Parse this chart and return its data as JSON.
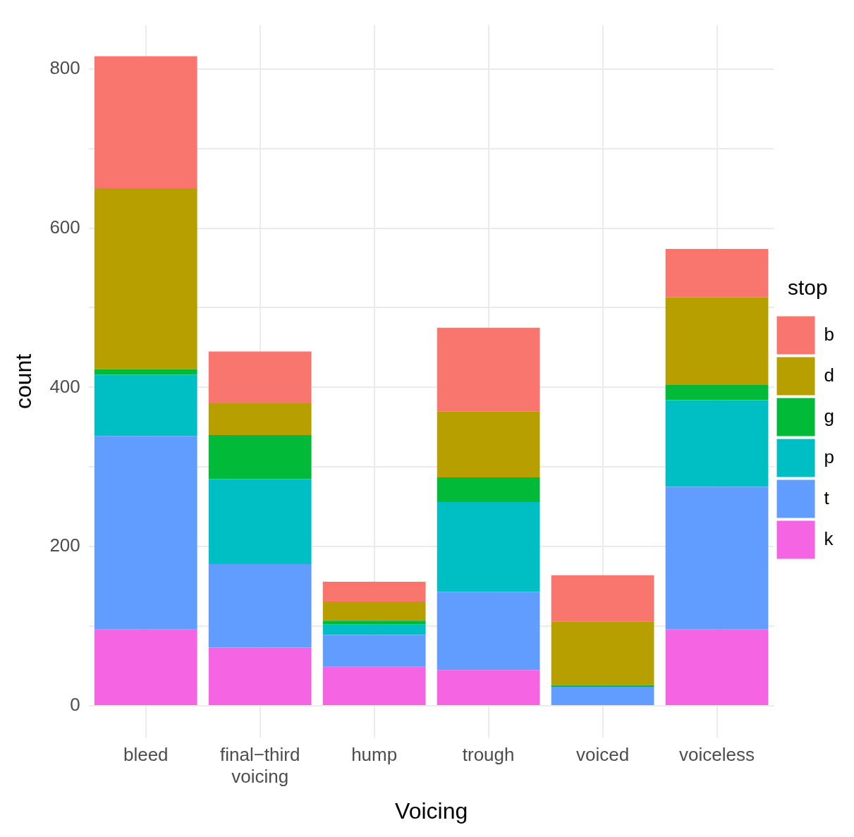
{
  "chart_data": {
    "type": "bar",
    "stacked": true,
    "xlabel": "Voicing",
    "ylabel": "count",
    "legend_title": "stop",
    "legend": "right",
    "grid": true,
    "categories": [
      "bleed",
      "final−third voicing",
      "hump",
      "trough",
      "voiced",
      "voiceless"
    ],
    "series": [
      {
        "name": "k",
        "color": "#f564e3",
        "values": [
          96,
          73,
          49,
          45,
          0,
          96
        ]
      },
      {
        "name": "t",
        "color": "#619cff",
        "values": [
          243,
          105,
          40,
          98,
          24,
          179
        ]
      },
      {
        "name": "p",
        "color": "#00bfc4",
        "values": [
          77,
          107,
          13,
          113,
          0,
          109
        ]
      },
      {
        "name": "g",
        "color": "#00ba38",
        "values": [
          7,
          55,
          5,
          31,
          2,
          19
        ]
      },
      {
        "name": "d",
        "color": "#b79f00",
        "values": [
          227,
          40,
          24,
          83,
          80,
          110
        ]
      },
      {
        "name": "b",
        "color": "#f8766d",
        "values": [
          166,
          65,
          25,
          105,
          58,
          61
        ]
      }
    ],
    "ylim": [
      -40,
      855
    ],
    "yticks": [
      0,
      {
        "value": 100,
        "label": null
      },
      200,
      {
        "value": 300,
        "label": null
      },
      400,
      {
        "value": 500,
        "label": null
      },
      600,
      {
        "value": 700,
        "label": null
      },
      800
    ]
  }
}
